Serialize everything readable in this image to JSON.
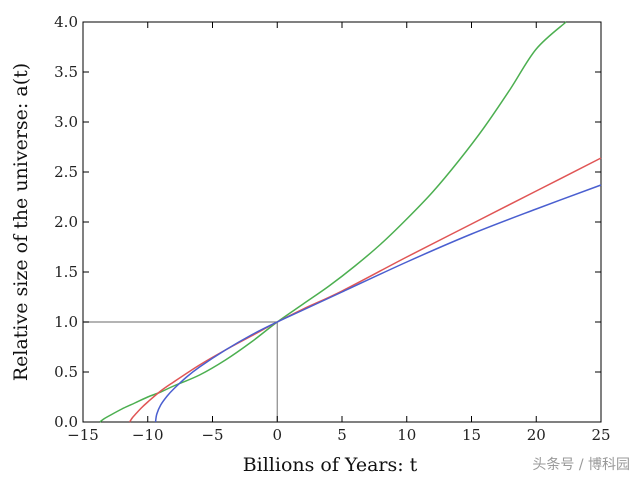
{
  "chart_data": {
    "type": "line",
    "title": "",
    "xlabel": "Billions of Years: t",
    "ylabel": "Relative size of the universe: a(t)",
    "xlim": [
      -15,
      25
    ],
    "ylim": [
      0,
      4
    ],
    "xticks": [
      -15,
      -10,
      -5,
      0,
      5,
      10,
      15,
      20,
      25
    ],
    "xtick_labels": [
      "−15",
      "−10",
      "−5",
      "0",
      "5",
      "10",
      "15",
      "20",
      "25"
    ],
    "yticks": [
      0,
      0.5,
      1,
      1.5,
      2,
      2.5,
      3,
      3.5,
      4
    ],
    "ytick_labels": [
      "0.0",
      "0.5",
      "1.0",
      "1.5",
      "2.0",
      "2.5",
      "3.0",
      "3.5",
      "4.0"
    ],
    "grid": false,
    "reference_lines": [
      {
        "x": [
          -15,
          0
        ],
        "y": [
          1,
          1
        ],
        "color": "#888888"
      },
      {
        "x": [
          0,
          0
        ],
        "y": [
          0,
          1
        ],
        "color": "#888888"
      }
    ],
    "series": [
      {
        "color": "#4caf50",
        "x": [
          -13.7,
          -13.4,
          -13,
          -12,
          -11,
          -10,
          -9,
          -8,
          -6,
          -4,
          -2,
          0,
          2,
          4,
          6,
          8,
          10,
          12,
          14,
          16,
          18,
          20,
          22.3
        ],
        "y": [
          0,
          0.03,
          0.06,
          0.13,
          0.19,
          0.25,
          0.3,
          0.36,
          0.47,
          0.62,
          0.8,
          1.0,
          1.18,
          1.36,
          1.56,
          1.78,
          2.03,
          2.3,
          2.61,
          2.95,
          3.33,
          3.73,
          4.0
        ]
      },
      {
        "color": "#e05555",
        "x": [
          -11.4,
          -11.2,
          -11,
          -10.5,
          -10,
          -9,
          -8,
          -6,
          -4,
          -2,
          0,
          2,
          5,
          10,
          15,
          20,
          25
        ],
        "y": [
          0,
          0.04,
          0.07,
          0.14,
          0.2,
          0.31,
          0.4,
          0.57,
          0.72,
          0.86,
          1.0,
          1.13,
          1.31,
          1.65,
          1.98,
          2.31,
          2.64
        ]
      },
      {
        "color": "#4a5fd0",
        "x": [
          -9.4,
          -9.3,
          -9,
          -8.5,
          -8,
          -7,
          -6,
          -4,
          -2,
          0,
          2,
          5,
          10,
          15,
          20,
          25
        ],
        "y": [
          0,
          0.08,
          0.17,
          0.26,
          0.33,
          0.45,
          0.55,
          0.72,
          0.87,
          1.0,
          1.12,
          1.3,
          1.6,
          1.88,
          2.13,
          2.37
        ]
      }
    ]
  },
  "watermark": "头条号 / 博科园"
}
